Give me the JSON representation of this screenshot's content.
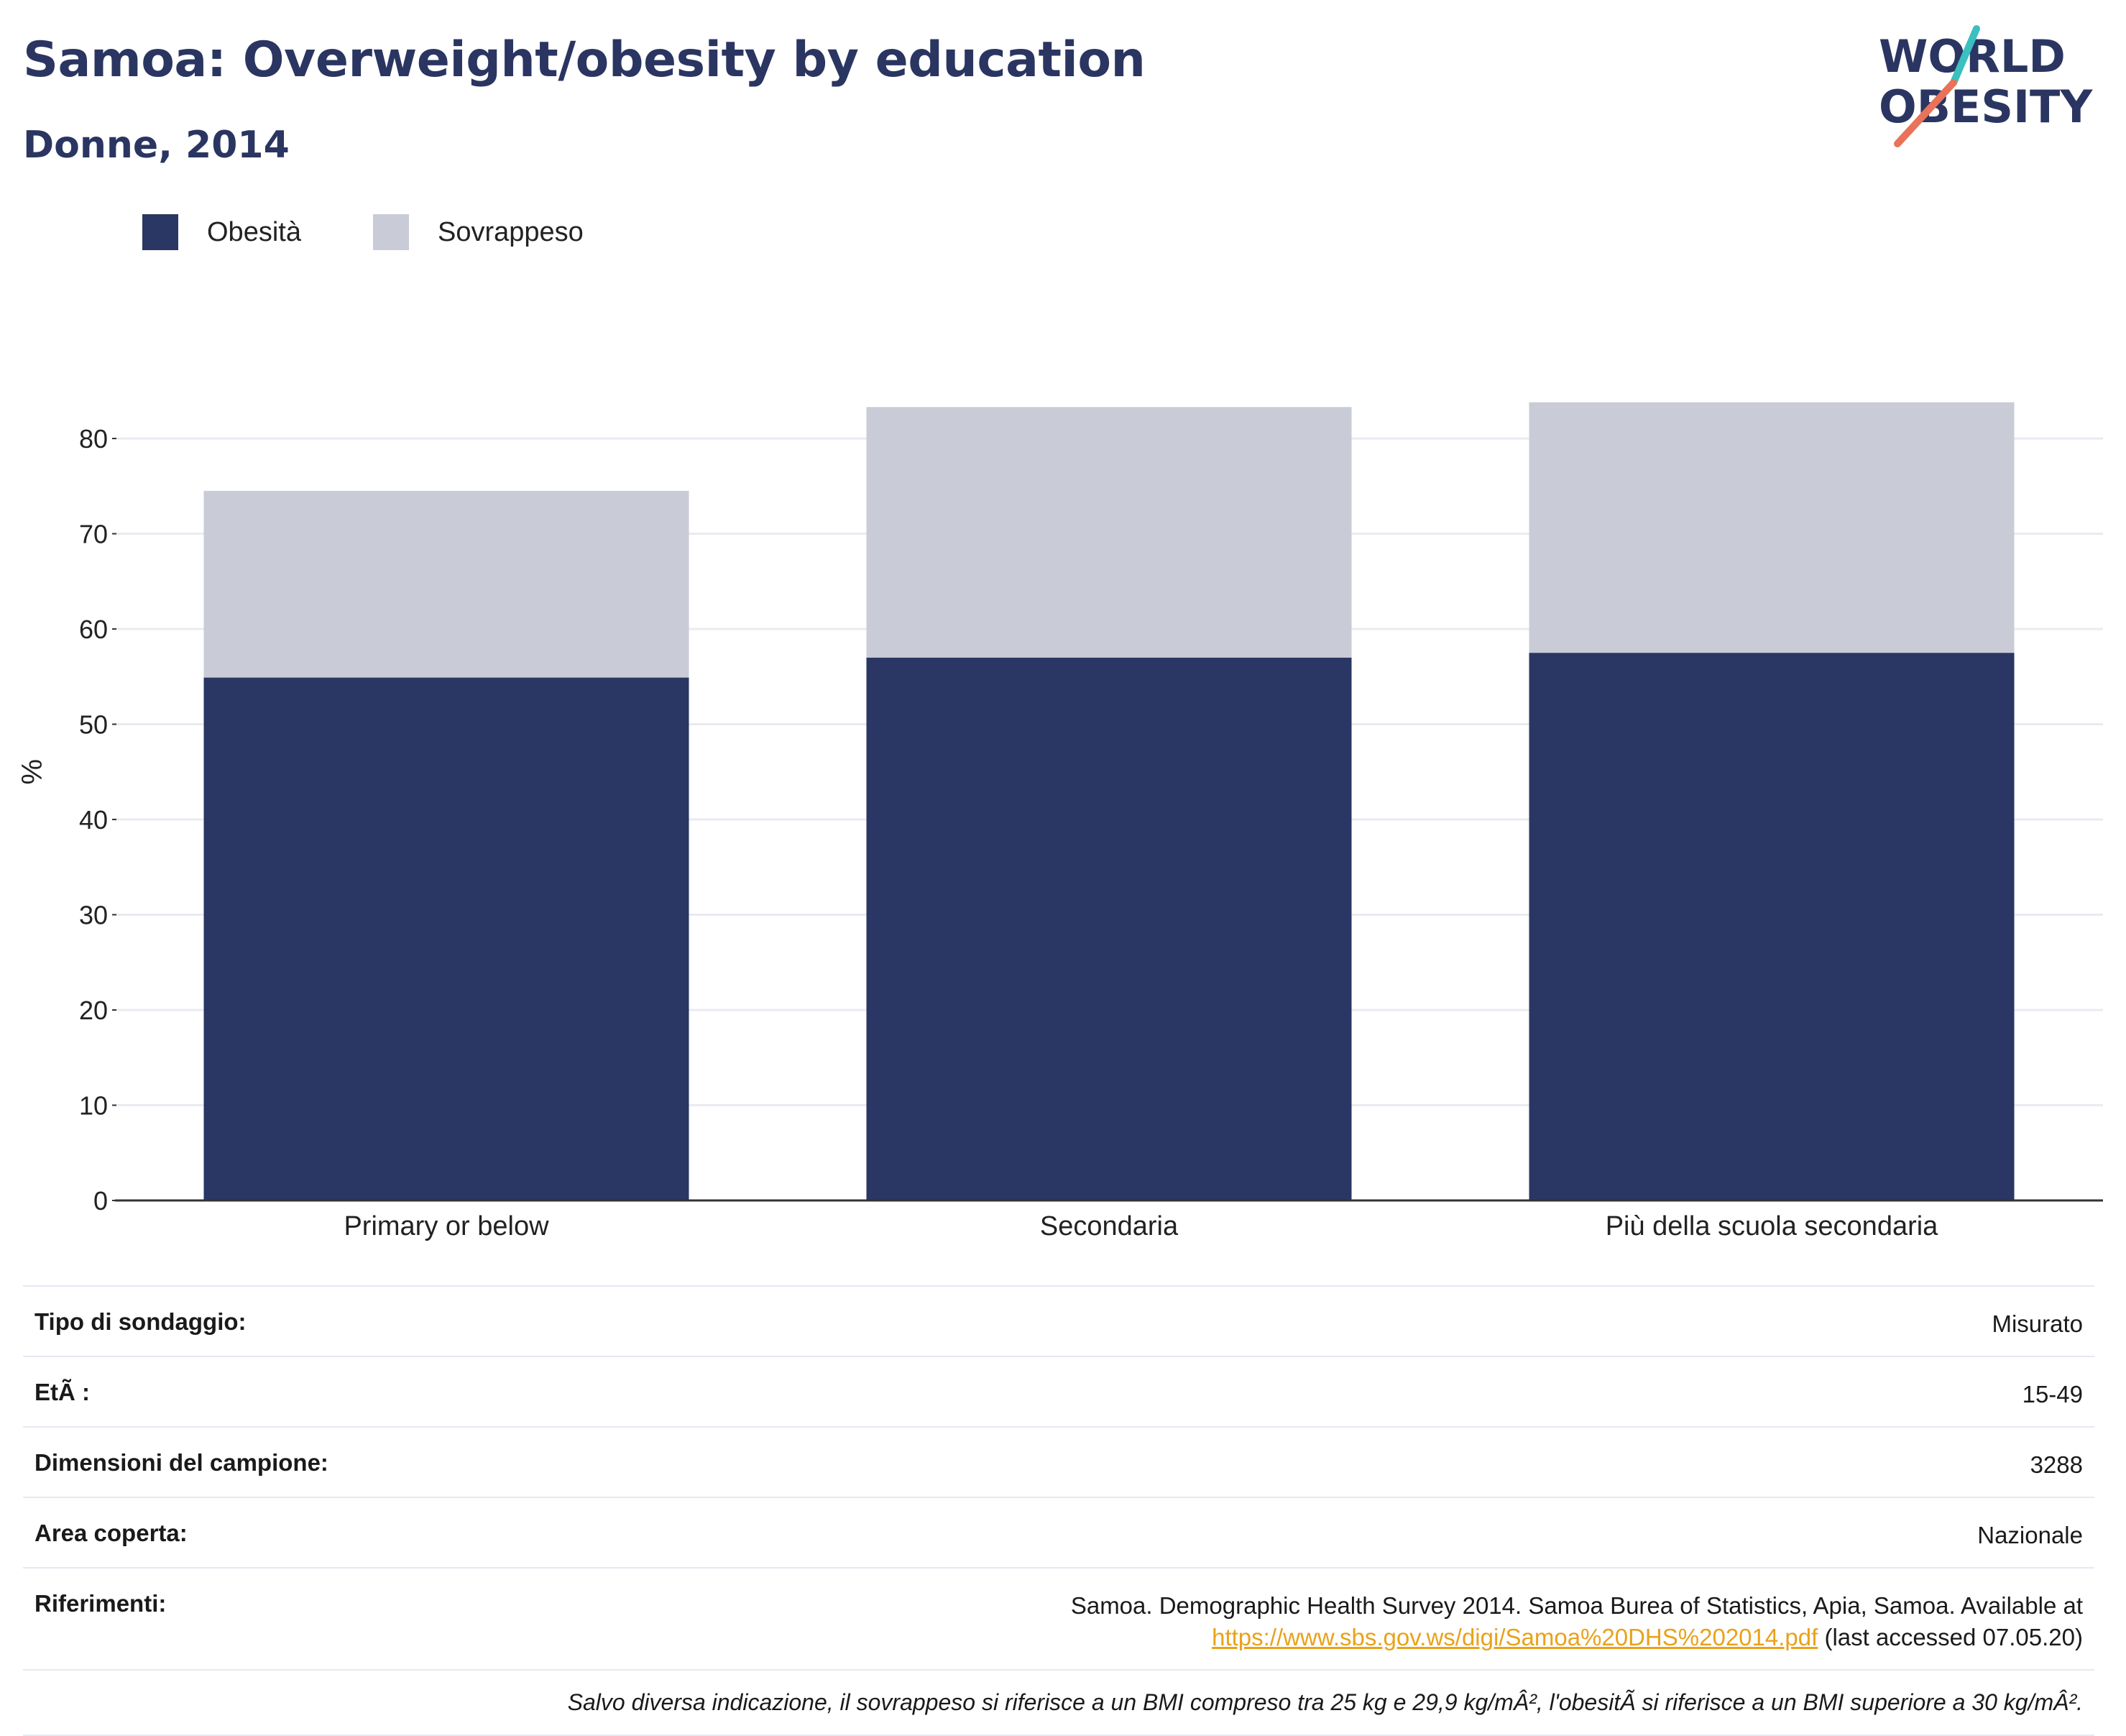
{
  "header": {
    "title": "Samoa: Overweight/obesity by education",
    "subtitle": "Donne, 2014"
  },
  "logo": {
    "line1": "WORLD",
    "line2": "OBESITY"
  },
  "colors": {
    "obesity": "#2a3663",
    "overweight": "#c9cbd6",
    "brand": "#2a3561",
    "link": "#e8a21a"
  },
  "chart_data": {
    "type": "bar",
    "stacked": true,
    "categories": [
      "Primary or below",
      "Secondaria",
      "Più della scuola secondaria"
    ],
    "series": [
      {
        "name": "Obesità",
        "values": [
          54.9,
          57.0,
          57.5
        ]
      },
      {
        "name": "Sovrappeso",
        "values": [
          19.6,
          26.3,
          26.3
        ]
      }
    ],
    "ylabel": "%",
    "ylim": [
      0,
      86
    ],
    "yticks": [
      0,
      10,
      20,
      30,
      40,
      50,
      60,
      70,
      80
    ],
    "grid": true,
    "legend_position": "top-left"
  },
  "info": [
    {
      "key": "Tipo di sondaggio:",
      "value": "Misurato"
    },
    {
      "key": "EtÃ :",
      "value": "15-49"
    },
    {
      "key": "Dimensioni del campione:",
      "value": "3288"
    },
    {
      "key": "Area coperta:",
      "value": "Nazionale"
    }
  ],
  "references": {
    "key": "Riferimenti:",
    "text_before": "Samoa. Demographic Health Survey 2014. Samoa Burea of Statistics, Apia, Samoa. Available at",
    "link": "https://www.sbs.gov.ws/digi/Samoa%20DHS%202014.pdf",
    "text_after": "(last accessed 07.05.20)"
  },
  "footnote": "Salvo diversa indicazione, il sovrappeso si riferisce a un BMI compreso tra 25 kg e 29,9 kg/mÂ², l'obesitÃ  si riferisce a un BMI superiore a 30 kg/mÂ²."
}
